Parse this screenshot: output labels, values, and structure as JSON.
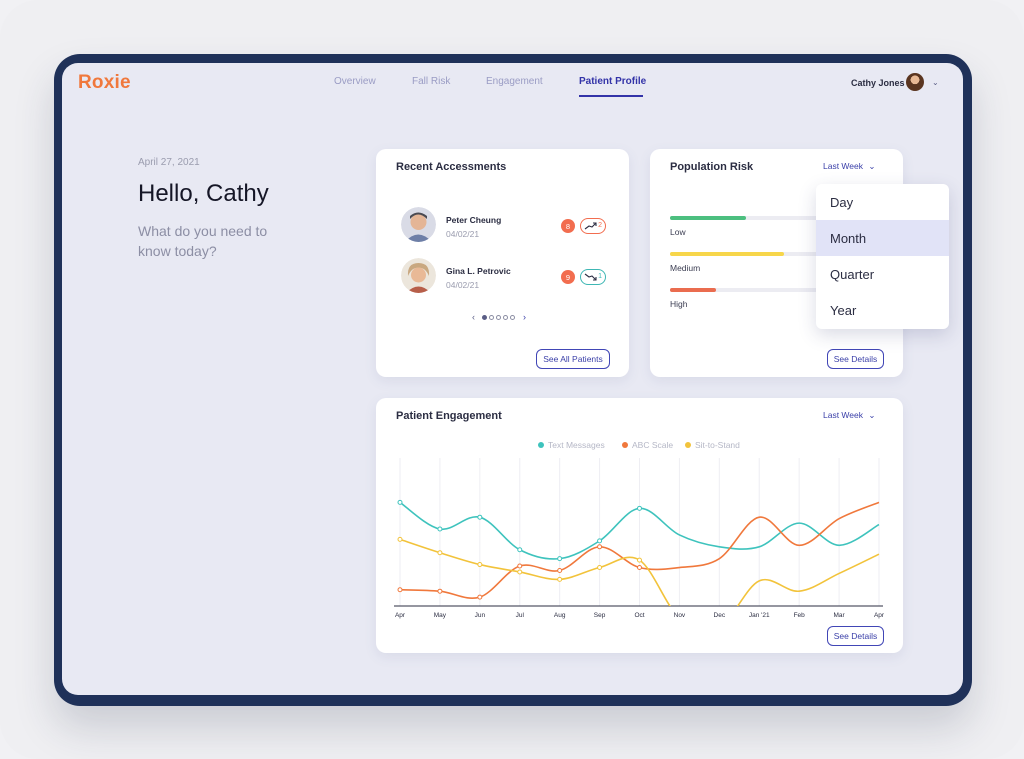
{
  "brand": {
    "name": "Roxie",
    "color": "#f0783c"
  },
  "nav": {
    "tabs": [
      {
        "label": "Overview"
      },
      {
        "label": "Fall Risk"
      },
      {
        "label": "Engagement"
      },
      {
        "label": "Patient Profile",
        "active": true
      }
    ]
  },
  "user": {
    "name": "Cathy Jones",
    "avatar_icon": "user-avatar",
    "menu_icon": "chevron-down-icon"
  },
  "welcome": {
    "date": "April 27, 2021",
    "greeting": "Hello, Cathy",
    "prompt": "What do you need to know today?"
  },
  "recent_assessments": {
    "title": "Recent Accessments",
    "patients": [
      {
        "name": "Peter Cheung",
        "date": "04/02/21",
        "score": "8",
        "trend": "up",
        "trend_count": "2"
      },
      {
        "name": "Gina L. Petrovic",
        "date": "04/02/21",
        "score": "9",
        "trend": "down",
        "trend_count": "1"
      }
    ],
    "pager": {
      "pages": 5,
      "current": 1,
      "prev_icon": "chevron-left-icon",
      "next_icon": "chevron-right-icon"
    },
    "button": "See All Patients"
  },
  "population_risk": {
    "title": "Population Risk",
    "period": "Last Week",
    "levels": [
      {
        "label": "Low",
        "fraction": 0.38,
        "color": "#4cbf7f"
      },
      {
        "label": "Medium",
        "fraction": 0.57,
        "color": "#f7d64a"
      },
      {
        "label": "High",
        "fraction": 0.23,
        "color": "#ea6c4f"
      }
    ],
    "button": "See Details",
    "period_menu": {
      "options": [
        "Day",
        "Month",
        "Quarter",
        "Year"
      ],
      "highlighted": "Month"
    }
  },
  "patient_engagement": {
    "title": "Patient Engagement",
    "period": "Last Week",
    "button": "See Details"
  },
  "chart_data": {
    "type": "line",
    "title": "",
    "xlabel": "",
    "ylabel": "",
    "categories": [
      "Apr",
      "May",
      "Jun",
      "Jul",
      "Aug",
      "Sep",
      "Oct",
      "Nov",
      "Dec",
      "Jan '21",
      "Feb",
      "Mar",
      "Apr"
    ],
    "ylim": [
      0,
      100
    ],
    "grid": "vertical",
    "legend_position": "top-center",
    "series": [
      {
        "name": "Text Messages",
        "color": "#3ec3bd",
        "values": [
          70,
          52,
          60,
          38,
          32,
          44,
          66,
          48,
          40,
          40,
          56,
          41,
          55
        ]
      },
      {
        "name": "ABC Scale",
        "color": "#f0783c",
        "values": [
          11,
          10,
          6,
          27,
          24,
          40,
          26,
          26,
          32,
          60,
          41,
          59,
          70
        ]
      },
      {
        "name": "Sit-to-Stand",
        "color": "#f2c33b",
        "values": [
          45,
          36,
          28,
          23,
          18,
          26,
          31,
          -8,
          -14,
          17,
          10,
          22,
          35
        ]
      }
    ],
    "markers_on_points": [
      "Text Messages:Apr-Oct",
      "ABC Scale:Apr-Oct",
      "Sit-to-Stand:Apr-Oct"
    ]
  }
}
